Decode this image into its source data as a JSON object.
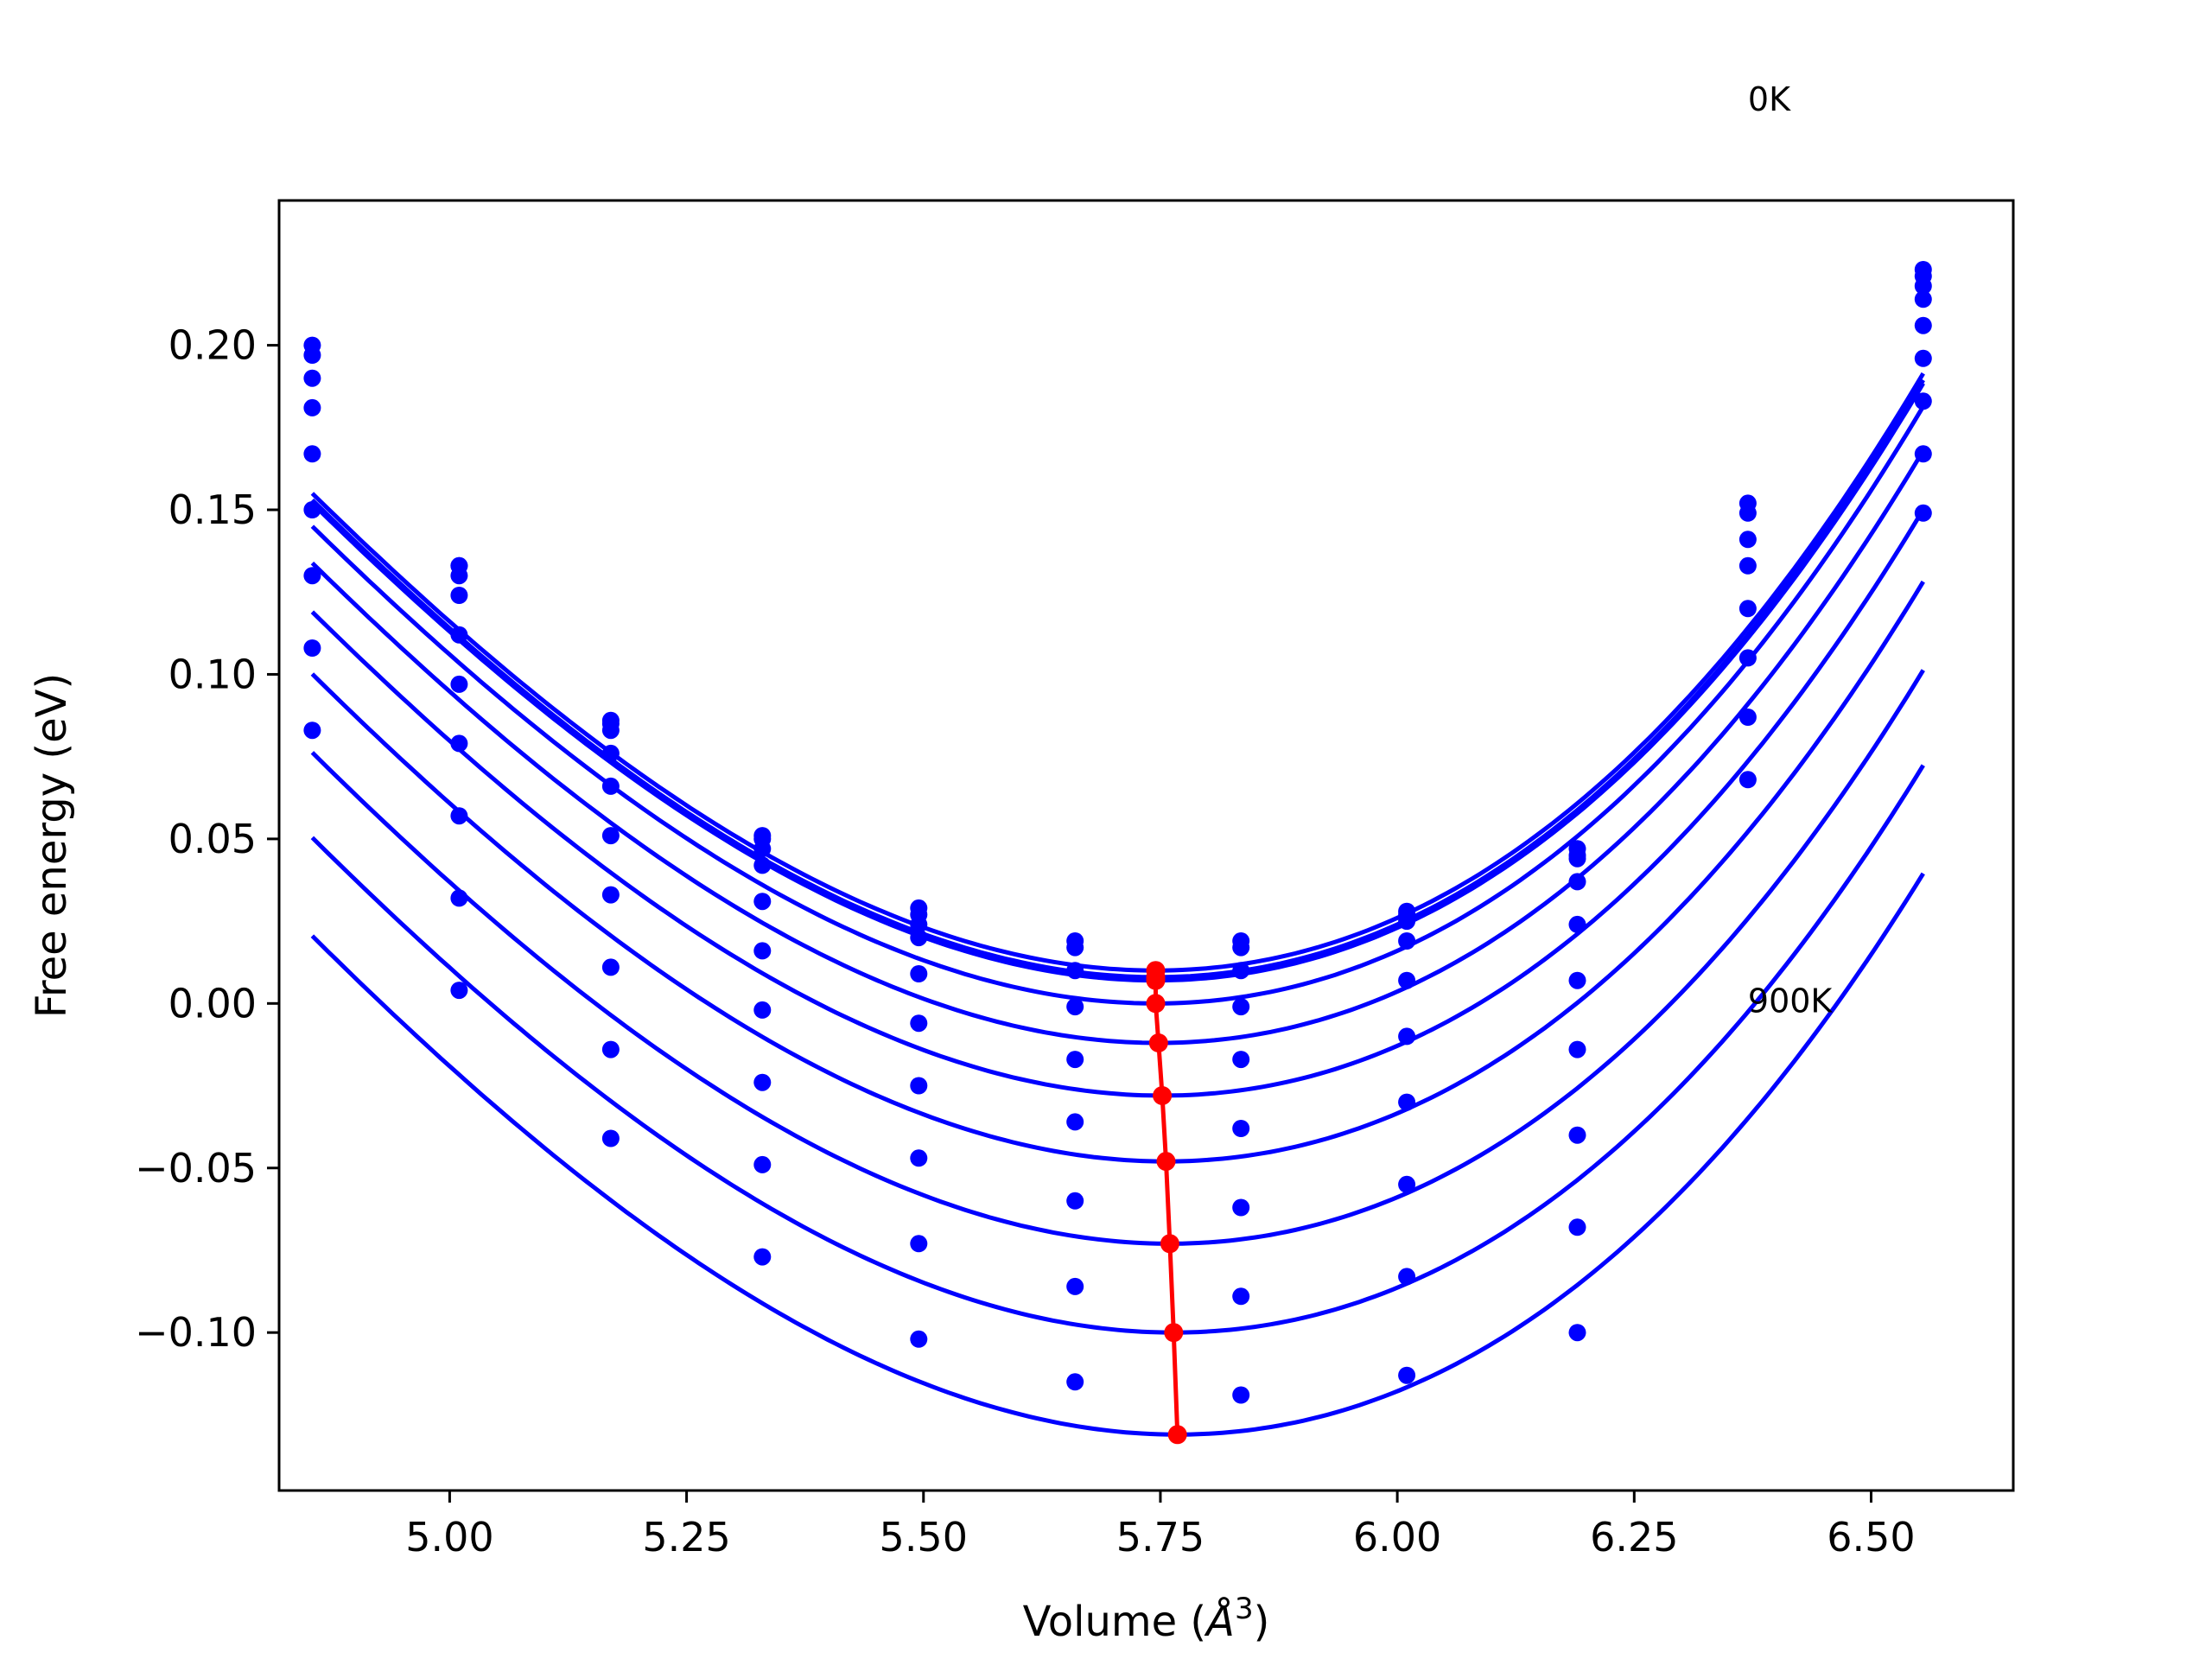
{
  "chart_data": {
    "type": "scatter",
    "title": "",
    "xlabel": "Volume (",
    "xlabel_unit": "Å",
    "xlabel_exp": "3",
    "xlabel_close": ")",
    "ylabel": "Free energy (eV)",
    "xlim": [
      4.82,
      6.65
    ],
    "ylim": [
      -0.148,
      0.244
    ],
    "xticks": [
      5.0,
      5.25,
      5.5,
      5.75,
      6.0,
      6.25,
      6.5
    ],
    "xtick_labels": [
      "5.00",
      "5.25",
      "5.50",
      "5.75",
      "6.00",
      "6.25",
      "6.50"
    ],
    "yticks": [
      -0.1,
      -0.05,
      0.0,
      0.05,
      0.1,
      0.15,
      0.2
    ],
    "ytick_labels": [
      "−0.10",
      "−0.05",
      "0.00",
      "0.05",
      "0.10",
      "0.15",
      "0.20"
    ],
    "grid": false,
    "legend": "none",
    "annotations": [
      {
        "text": "0K",
        "x": 6.37,
        "y": 0.275
      },
      {
        "text": "900K",
        "x": 6.37,
        "y": 0.001
      }
    ],
    "colors": {
      "curves": "#0000ff",
      "points": "#0000ff",
      "minimum_path": "#ff0000"
    },
    "volumes": [
      4.855,
      5.01,
      5.17,
      5.33,
      5.495,
      5.66,
      5.835,
      6.01,
      6.19,
      6.37,
      6.555
    ],
    "series": [
      {
        "fit": {
          "v0": 5.745,
          "e0": 0.01,
          "a": 0.232,
          "b": 0.055
        },
        "points": [
          0.2,
          0.133,
          0.086,
          0.051,
          0.029,
          0.019,
          0.019,
          0.028,
          0.047,
          0.152,
          0.223
        ]
      },
      {
        "fit": {
          "v0": 5.745,
          "e0": 0.008,
          "a": 0.232,
          "b": 0.055
        },
        "points": [
          0.197,
          0.133,
          0.085,
          0.05,
          0.027,
          0.017,
          0.017,
          0.027,
          0.045,
          0.149,
          0.221
        ]
      },
      {
        "fit": {
          "v0": 5.745,
          "e0": 0.007,
          "a": 0.232,
          "b": 0.055
        },
        "points": [
          0.19,
          0.13,
          0.083,
          0.047,
          0.024,
          0.01,
          0.01,
          0.025,
          0.044,
          0.141,
          0.218
        ]
      },
      {
        "fit": {
          "v0": 5.745,
          "e0": 0.0,
          "a": 0.232,
          "b": 0.055
        },
        "points": [
          0.181,
          0.124,
          0.076,
          0.042,
          0.02,
          -0.001,
          -0.001,
          0.019,
          0.037,
          0.133,
          0.214
        ]
      },
      {
        "fit": {
          "v0": 5.748,
          "e0": -0.012,
          "a": 0.232,
          "b": 0.055
        },
        "points": [
          0.167,
          0.112,
          0.066,
          0.031,
          0.009,
          -0.017,
          -0.017,
          0.007,
          0.024,
          0.12,
          0.206
        ]
      },
      {
        "fit": {
          "v0": 5.752,
          "e0": -0.028,
          "a": 0.232,
          "b": 0.055
        },
        "points": [
          0.15,
          0.097,
          0.051,
          0.016,
          -0.006,
          -0.036,
          -0.038,
          -0.01,
          0.007,
          0.105,
          0.196
        ]
      },
      {
        "fit": {
          "v0": 5.756,
          "e0": -0.048,
          "a": 0.232,
          "b": 0.055
        },
        "points": [
          0.13,
          0.079,
          0.033,
          -0.002,
          -0.025,
          -0.06,
          -0.062,
          -0.03,
          -0.014,
          0.087,
          0.183
        ]
      },
      {
        "fit": {
          "v0": 5.76,
          "e0": -0.073,
          "a": 0.232,
          "b": 0.055
        },
        "points": [
          0.108,
          0.057,
          0.011,
          -0.024,
          -0.047,
          -0.086,
          -0.089,
          -0.055,
          -0.04,
          0.068,
          0.167
        ]
      },
      {
        "fit": {
          "v0": 5.764,
          "e0": -0.1,
          "a": 0.232,
          "b": 0.055
        },
        "points": [
          0.083,
          0.032,
          -0.014,
          -0.049,
          -0.073,
          -0.115,
          -0.119,
          -0.083,
          -0.068,
          null,
          0.149
        ]
      },
      {
        "fit": {
          "v0": 5.768,
          "e0": -0.131,
          "a": 0.232,
          "b": 0.055
        },
        "points": [
          null,
          0.004,
          -0.041,
          -0.077,
          -0.102,
          null,
          null,
          -0.113,
          -0.1,
          null,
          null
        ]
      }
    ],
    "minimum_path": {
      "x": [
        5.745,
        5.745,
        5.745,
        5.745,
        5.748,
        5.752,
        5.756,
        5.76,
        5.764,
        5.768
      ],
      "y": [
        0.01,
        0.008,
        0.007,
        0.0,
        -0.012,
        -0.028,
        -0.048,
        -0.073,
        -0.1,
        -0.131
      ]
    }
  }
}
